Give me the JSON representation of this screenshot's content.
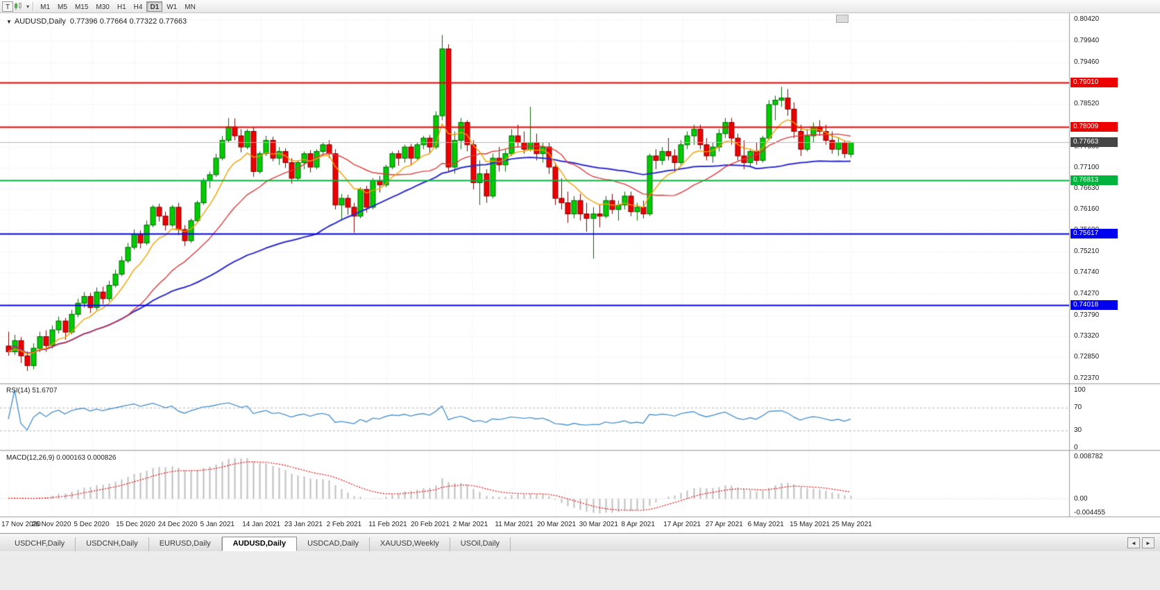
{
  "app": {
    "toolbar": {
      "t_label": "T",
      "timeframes": [
        "M1",
        "M5",
        "M15",
        "M30",
        "H1",
        "H4",
        "D1",
        "W1",
        "MN"
      ],
      "active_timeframe": "D1"
    }
  },
  "icons": {
    "title_collapse": "▼",
    "toolbar_caret": "▾",
    "tabs_left": "◄",
    "tabs_right": "►"
  },
  "chart": {
    "title": {
      "symbol": "AUDUSD,Daily",
      "ohlc": "0.77396 0.77664 0.77322 0.77663"
    },
    "levels": [
      {
        "value": 0.7901,
        "label": "0.79010",
        "color": "#ee0000",
        "style": "line"
      },
      {
        "value": 0.78009,
        "label": "0.78009",
        "color": "#ee0000",
        "style": "line"
      },
      {
        "value": 0.77663,
        "label": "0.77663",
        "color": "#454545",
        "line_color": "#b8b8b8",
        "style": "current"
      },
      {
        "value": 0.76813,
        "label": "0.76813",
        "color": "#00b33c",
        "style": "line"
      },
      {
        "value": 0.75617,
        "label": "0.75617",
        "color": "#0000ee",
        "style": "line"
      },
      {
        "value": 0.74018,
        "label": "0.74018",
        "color": "#0000ee",
        "style": "line"
      }
    ],
    "rsi": {
      "label": "RSI(14) 51.6707",
      "value": 51.6707,
      "period": 14,
      "ticks": [
        "100",
        "70",
        "30",
        "0"
      ],
      "guides": [
        70,
        30
      ]
    },
    "macd": {
      "label": "MACD(12,26,9) 0.000163 0.000826",
      "main": 0.000163,
      "signal": 0.000826,
      "params": "12,26,9",
      "ticks": {
        "top": "0.008782",
        "zero": "0.00",
        "bottom": "-0.004455"
      }
    }
  },
  "chart_data": {
    "type": "candlestick",
    "symbol": "AUDUSD",
    "timeframe": "Daily",
    "title": "AUDUSD,Daily",
    "y_range": [
      0.7237,
      0.8042
    ],
    "y_ticks": [
      "0.80420",
      "0.79940",
      "0.79460",
      "0.78990",
      "0.78520",
      "0.78040",
      "0.77560",
      "0.77100",
      "0.76630",
      "0.76160",
      "0.75690",
      "0.75210",
      "0.74740",
      "0.74270",
      "0.73790",
      "0.73320",
      "0.72850",
      "0.72370"
    ],
    "x_labels": [
      "17 Nov 2020",
      "26 Nov 2020",
      "5 Dec 2020",
      "15 Dec 2020",
      "24 Dec 2020",
      "5 Jan 2021",
      "14 Jan 2021",
      "23 Jan 2021",
      "2 Feb 2021",
      "11 Feb 2021",
      "20 Feb 2021",
      "2 Mar 2021",
      "11 Mar 2021",
      "20 Mar 2021",
      "30 Mar 2021",
      "8 Apr 2021",
      "17 Apr 2021",
      "27 Apr 2021",
      "6 May 2021",
      "15 May 2021",
      "25 May 2021"
    ],
    "current": {
      "open": 0.77396,
      "high": 0.77664,
      "low": 0.77322,
      "close": 0.77663
    },
    "moving_averages": [
      {
        "name": "fast",
        "type": "ema",
        "period": 8,
        "color": "#f2a100",
        "width": 1.4
      },
      {
        "name": "mid",
        "type": "sma",
        "period": 20,
        "color": "#e03a3a",
        "width": 1.4
      },
      {
        "name": "slow",
        "type": "sma",
        "period": 50,
        "color": "#2b2bd0",
        "width": 2
      }
    ],
    "candles": [
      [
        0.731,
        0.7342,
        0.7288,
        0.7297
      ],
      [
        0.7297,
        0.7335,
        0.729,
        0.7322
      ],
      [
        0.7322,
        0.733,
        0.7272,
        0.7288
      ],
      [
        0.7288,
        0.7298,
        0.7254,
        0.7266
      ],
      [
        0.7266,
        0.7316,
        0.7258,
        0.7305
      ],
      [
        0.7305,
        0.7342,
        0.7296,
        0.7331
      ],
      [
        0.7331,
        0.7345,
        0.7297,
        0.7311
      ],
      [
        0.7311,
        0.7356,
        0.7304,
        0.7346
      ],
      [
        0.7346,
        0.7376,
        0.7338,
        0.7366
      ],
      [
        0.7366,
        0.7373,
        0.7324,
        0.7341
      ],
      [
        0.7341,
        0.7391,
        0.7336,
        0.7381
      ],
      [
        0.7381,
        0.7416,
        0.7374,
        0.7406
      ],
      [
        0.7406,
        0.7431,
        0.7396,
        0.7421
      ],
      [
        0.7421,
        0.7429,
        0.7384,
        0.7396
      ],
      [
        0.7396,
        0.7441,
        0.739,
        0.7431
      ],
      [
        0.7431,
        0.7443,
        0.7404,
        0.7416
      ],
      [
        0.7416,
        0.7456,
        0.741,
        0.7446
      ],
      [
        0.7446,
        0.7481,
        0.7441,
        0.7471
      ],
      [
        0.7471,
        0.7511,
        0.7466,
        0.7501
      ],
      [
        0.7501,
        0.7541,
        0.7496,
        0.7531
      ],
      [
        0.7531,
        0.7571,
        0.7526,
        0.7561
      ],
      [
        0.7561,
        0.7569,
        0.7529,
        0.7541
      ],
      [
        0.7541,
        0.7591,
        0.7536,
        0.7581
      ],
      [
        0.7581,
        0.7626,
        0.7576,
        0.7621
      ],
      [
        0.7621,
        0.7629,
        0.7589,
        0.7601
      ],
      [
        0.7601,
        0.7611,
        0.7569,
        0.7581
      ],
      [
        0.7581,
        0.7626,
        0.7576,
        0.7621
      ],
      [
        0.7621,
        0.7631,
        0.7559,
        0.7571
      ],
      [
        0.7571,
        0.7581,
        0.7534,
        0.7546
      ],
      [
        0.7546,
        0.7596,
        0.7541,
        0.7591
      ],
      [
        0.7591,
        0.7636,
        0.7586,
        0.7631
      ],
      [
        0.7631,
        0.7686,
        0.7626,
        0.7681
      ],
      [
        0.7681,
        0.7701,
        0.7664,
        0.7694
      ],
      [
        0.7694,
        0.7741,
        0.7689,
        0.7731
      ],
      [
        0.7731,
        0.7781,
        0.7726,
        0.7771
      ],
      [
        0.7771,
        0.7821,
        0.7766,
        0.7801
      ],
      [
        0.7801,
        0.782,
        0.7771,
        0.7781
      ],
      [
        0.7781,
        0.7796,
        0.7744,
        0.7756
      ],
      [
        0.7756,
        0.7796,
        0.7751,
        0.7791
      ],
      [
        0.7791,
        0.7801,
        0.7689,
        0.7701
      ],
      [
        0.7701,
        0.7746,
        0.7696,
        0.7741
      ],
      [
        0.7741,
        0.7781,
        0.7736,
        0.7771
      ],
      [
        0.7771,
        0.7779,
        0.7724,
        0.7731
      ],
      [
        0.7731,
        0.7756,
        0.7716,
        0.7746
      ],
      [
        0.7746,
        0.7753,
        0.7709,
        0.7721
      ],
      [
        0.7721,
        0.7731,
        0.7674,
        0.7686
      ],
      [
        0.7686,
        0.7726,
        0.7681,
        0.7721
      ],
      [
        0.7721,
        0.7746,
        0.7706,
        0.7741
      ],
      [
        0.7741,
        0.7749,
        0.7699,
        0.7711
      ],
      [
        0.7711,
        0.7751,
        0.7706,
        0.7746
      ],
      [
        0.7746,
        0.7766,
        0.7736,
        0.7761
      ],
      [
        0.7761,
        0.7771,
        0.7731,
        0.7741
      ],
      [
        0.7741,
        0.7751,
        0.7616,
        0.7626
      ],
      [
        0.7626,
        0.7651,
        0.7591,
        0.7641
      ],
      [
        0.7641,
        0.7649,
        0.7604,
        0.7621
      ],
      [
        0.7621,
        0.7631,
        0.7564,
        0.7601
      ],
      [
        0.7601,
        0.7666,
        0.7596,
        0.7661
      ],
      [
        0.7661,
        0.7669,
        0.7609,
        0.7621
      ],
      [
        0.7621,
        0.7686,
        0.7616,
        0.7681
      ],
      [
        0.7681,
        0.7691,
        0.7654,
        0.7671
      ],
      [
        0.7671,
        0.7716,
        0.7666,
        0.7711
      ],
      [
        0.7711,
        0.7746,
        0.7706,
        0.7741
      ],
      [
        0.7741,
        0.7749,
        0.7714,
        0.7731
      ],
      [
        0.7731,
        0.7761,
        0.7721,
        0.7756
      ],
      [
        0.7756,
        0.7763,
        0.7714,
        0.7731
      ],
      [
        0.7731,
        0.7766,
        0.7726,
        0.7761
      ],
      [
        0.7761,
        0.7781,
        0.7751,
        0.7776
      ],
      [
        0.7776,
        0.7783,
        0.7741,
        0.7756
      ],
      [
        0.7756,
        0.7836,
        0.7751,
        0.7826
      ],
      [
        0.7826,
        0.8007,
        0.7816,
        0.7976
      ],
      [
        0.7976,
        0.7986,
        0.7701,
        0.7711
      ],
      [
        0.7711,
        0.7791,
        0.7696,
        0.7771
      ],
      [
        0.7771,
        0.7821,
        0.7751,
        0.7811
      ],
      [
        0.7811,
        0.7816,
        0.7746,
        0.7761
      ],
      [
        0.7761,
        0.7771,
        0.7661,
        0.7676
      ],
      [
        0.7676,
        0.7726,
        0.7626,
        0.7696
      ],
      [
        0.7696,
        0.7706,
        0.7631,
        0.7646
      ],
      [
        0.7646,
        0.7741,
        0.7641,
        0.7731
      ],
      [
        0.7731,
        0.7756,
        0.7701,
        0.7716
      ],
      [
        0.7716,
        0.7751,
        0.7701,
        0.7741
      ],
      [
        0.7741,
        0.7796,
        0.7736,
        0.7781
      ],
      [
        0.7781,
        0.7806,
        0.7756,
        0.7766
      ],
      [
        0.7766,
        0.7791,
        0.7741,
        0.7751
      ],
      [
        0.7751,
        0.7846,
        0.7746,
        0.7766
      ],
      [
        0.7766,
        0.7786,
        0.7726,
        0.7741
      ],
      [
        0.7741,
        0.7766,
        0.7721,
        0.7756
      ],
      [
        0.7756,
        0.7766,
        0.7696,
        0.7711
      ],
      [
        0.7711,
        0.7721,
        0.7626,
        0.7641
      ],
      [
        0.7641,
        0.7686,
        0.7616,
        0.7631
      ],
      [
        0.7631,
        0.7656,
        0.7586,
        0.7606
      ],
      [
        0.7606,
        0.7646,
        0.7596,
        0.7636
      ],
      [
        0.7636,
        0.7651,
        0.7591,
        0.7606
      ],
      [
        0.7606,
        0.7631,
        0.7566,
        0.7596
      ],
      [
        0.7596,
        0.7621,
        0.7506,
        0.7606
      ],
      [
        0.7606,
        0.7626,
        0.7576,
        0.7601
      ],
      [
        0.7601,
        0.7646,
        0.7596,
        0.7636
      ],
      [
        0.7636,
        0.7651,
        0.7606,
        0.7616
      ],
      [
        0.7616,
        0.7636,
        0.7591,
        0.7626
      ],
      [
        0.7626,
        0.7656,
        0.7616,
        0.7646
      ],
      [
        0.7646,
        0.7656,
        0.7601,
        0.7611
      ],
      [
        0.7611,
        0.7631,
        0.7591,
        0.7621
      ],
      [
        0.7621,
        0.7636,
        0.7596,
        0.7606
      ],
      [
        0.7606,
        0.7741,
        0.7601,
        0.7736
      ],
      [
        0.7736,
        0.7751,
        0.7706,
        0.7726
      ],
      [
        0.7726,
        0.7756,
        0.7716,
        0.7746
      ],
      [
        0.7746,
        0.7776,
        0.7726,
        0.7736
      ],
      [
        0.7736,
        0.7751,
        0.7701,
        0.7721
      ],
      [
        0.7721,
        0.7771,
        0.7716,
        0.7761
      ],
      [
        0.7761,
        0.7791,
        0.7751,
        0.7781
      ],
      [
        0.7781,
        0.7806,
        0.7761,
        0.7796
      ],
      [
        0.7796,
        0.7806,
        0.7751,
        0.7761
      ],
      [
        0.7761,
        0.7776,
        0.7726,
        0.7736
      ],
      [
        0.7736,
        0.7766,
        0.7721,
        0.7756
      ],
      [
        0.7756,
        0.7796,
        0.7746,
        0.7786
      ],
      [
        0.7786,
        0.7821,
        0.7776,
        0.7811
      ],
      [
        0.7811,
        0.7821,
        0.7761,
        0.7776
      ],
      [
        0.7776,
        0.7786,
        0.7726,
        0.7736
      ],
      [
        0.7736,
        0.7771,
        0.7706,
        0.7721
      ],
      [
        0.7721,
        0.7751,
        0.7711,
        0.7746
      ],
      [
        0.7746,
        0.7766,
        0.7716,
        0.7726
      ],
      [
        0.7726,
        0.7781,
        0.7721,
        0.7776
      ],
      [
        0.7776,
        0.7861,
        0.7771,
        0.7851
      ],
      [
        0.7851,
        0.7871,
        0.7816,
        0.7861
      ],
      [
        0.7861,
        0.7891,
        0.7846,
        0.7866
      ],
      [
        0.7866,
        0.7886,
        0.7826,
        0.7841
      ],
      [
        0.7841,
        0.7856,
        0.7776,
        0.7791
      ],
      [
        0.7791,
        0.7806,
        0.7736,
        0.7751
      ],
      [
        0.7751,
        0.7796,
        0.7746,
        0.7781
      ],
      [
        0.7781,
        0.7811,
        0.7766,
        0.7801
      ],
      [
        0.7801,
        0.7816,
        0.7781,
        0.7791
      ],
      [
        0.7791,
        0.7806,
        0.7761,
        0.7771
      ],
      [
        0.7771,
        0.7791,
        0.7741,
        0.7751
      ],
      [
        0.7751,
        0.7776,
        0.7736,
        0.7766
      ],
      [
        0.7766,
        0.7771,
        0.7731,
        0.7741
      ],
      [
        0.77396,
        0.77664,
        0.77322,
        0.77663
      ]
    ]
  },
  "colors": {
    "bull": "#00cc00",
    "bull_border": "#006600",
    "bear": "#ee0000",
    "bear_border": "#7a0000",
    "rsi_line": "#4f94cd",
    "macd_hist": "#bdbdbd",
    "macd_signal": "#ee0000",
    "grid": "#e6e6e6",
    "separator": "#9a9a9a"
  },
  "tabs": {
    "items": [
      "USDCHF,Daily",
      "USDCNH,Daily",
      "EURUSD,Daily",
      "AUDUSD,Daily",
      "USDCAD,Daily",
      "XAUUSD,Weekly",
      "USOil,Daily"
    ],
    "active_index": 3
  }
}
